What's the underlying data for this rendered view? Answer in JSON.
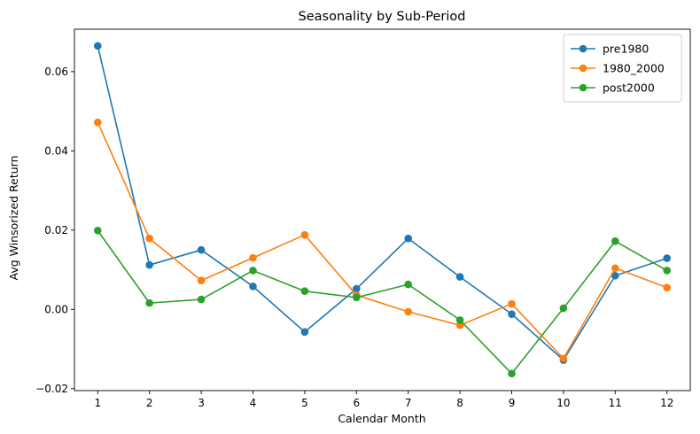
{
  "chart_data": {
    "type": "line",
    "title": "Seasonality by Sub-Period",
    "xlabel": "Calendar Month",
    "ylabel": "Avg Winsorized Return",
    "x": [
      1,
      2,
      3,
      4,
      5,
      6,
      7,
      8,
      9,
      10,
      11,
      12
    ],
    "xticks": [
      "1",
      "2",
      "3",
      "4",
      "5",
      "6",
      "7",
      "8",
      "9",
      "10",
      "11",
      "12"
    ],
    "xlim": [
      0.55,
      12.45
    ],
    "ylim": [
      -0.0205,
      0.0707
    ],
    "yticks": [
      -0.02,
      0.0,
      0.02,
      0.04,
      0.06
    ],
    "ytick_labels": [
      "−0.02",
      "0.00",
      "0.02",
      "0.04",
      "0.06"
    ],
    "grid": false,
    "legend_position": "top-right",
    "series": [
      {
        "name": "pre1980",
        "color": "#1f77b4",
        "values": [
          0.0665,
          0.0112,
          0.015,
          0.0058,
          -0.0057,
          0.0052,
          0.0179,
          0.0082,
          -0.0012,
          -0.0128,
          0.0085,
          0.0129
        ]
      },
      {
        "name": "1980_2000",
        "color": "#ff7f0e",
        "values": [
          0.0472,
          0.0179,
          0.0073,
          0.013,
          0.0188,
          0.0036,
          -0.0006,
          -0.004,
          0.0014,
          -0.0124,
          0.0104,
          0.0055
        ]
      },
      {
        "name": "post2000",
        "color": "#2ca02c",
        "values": [
          0.0199,
          0.0016,
          0.0025,
          0.0098,
          0.0046,
          0.003,
          0.0063,
          -0.0027,
          -0.0162,
          0.0003,
          0.0172,
          0.0098
        ]
      }
    ]
  }
}
